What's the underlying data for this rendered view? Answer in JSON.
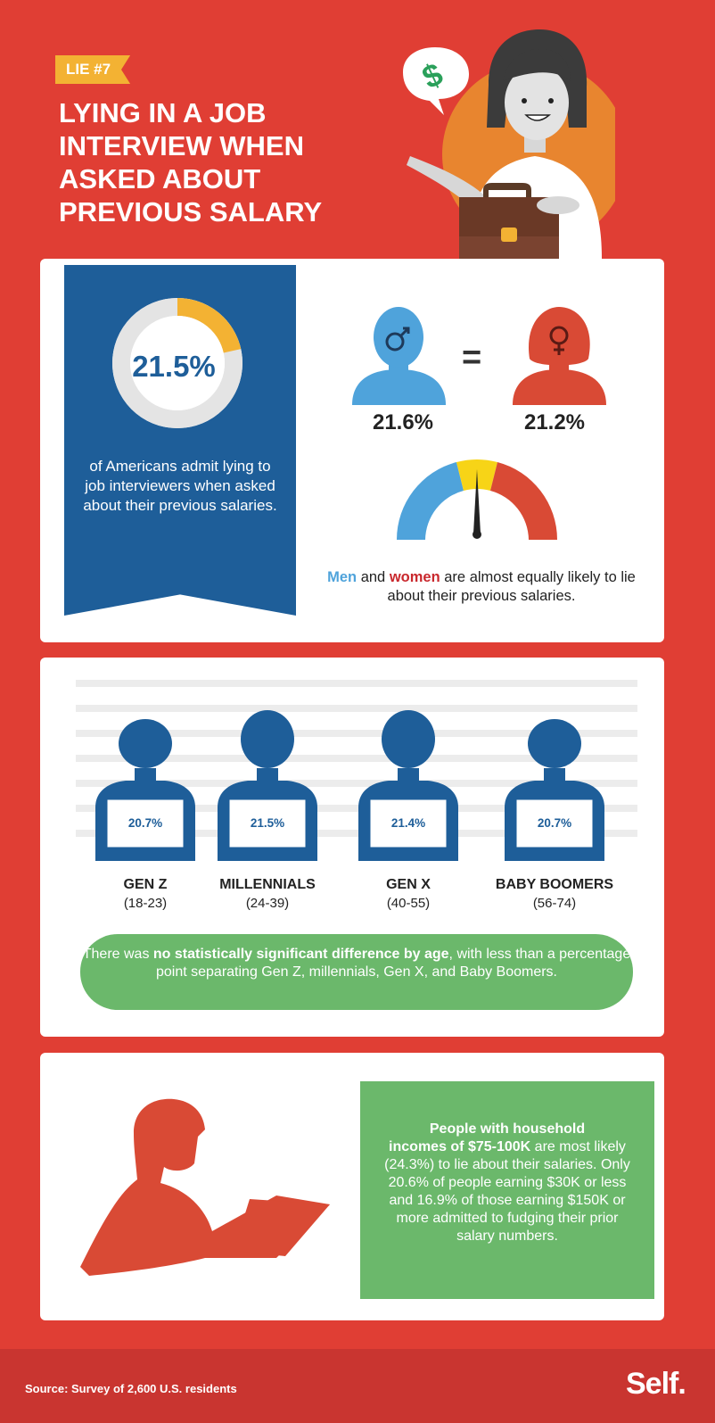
{
  "header": {
    "badge": "LIE #7",
    "title": "LYING IN A JOB INTERVIEW WHEN ASKED ABOUT PREVIOUS SALARY"
  },
  "overall": {
    "percent_label": "21.5%",
    "percent_value": 0.215,
    "description": "of Americans admit lying to job interviewers when asked about their previous salaries."
  },
  "gender": {
    "men_pct": "21.6%",
    "women_pct": "21.2%",
    "equals": "=",
    "note_men": "Men",
    "note_and": " and ",
    "note_women": "women",
    "note_rest": " are almost equally likely to lie about their previous salaries."
  },
  "generations": [
    {
      "pct": "20.7%",
      "label": "GEN Z",
      "range": "(18-23)"
    },
    {
      "pct": "21.5%",
      "label": "MILLENNIALS",
      "range": "(24-39)"
    },
    {
      "pct": "21.4%",
      "label": "GEN X",
      "range": "(40-55)"
    },
    {
      "pct": "20.7%",
      "label": "BABY BOOMERS",
      "range": "(56-74)"
    }
  ],
  "age_note": {
    "prefix": "There was ",
    "bold": "no statistically significant difference by age",
    "suffix": ", with less than a percentage point separating Gen Z, millennials, Gen X, and Baby Boomers."
  },
  "income_note": {
    "bold_1": "People with household",
    "bold_2": "incomes of $75-100K",
    "rest": " are most likely (24.3%) to lie about their salaries.  Only 20.6% of people earning $30K or less and 16.9% of those earning $150K or more admitted to fudging their prior salary numbers."
  },
  "footer": {
    "source": "Source: Survey of 2,600 U.S. residents",
    "logo": "Self."
  },
  "colors": {
    "background": "#e03e34",
    "blue": "#1e5e99",
    "light_blue": "#4fa3db",
    "orange": "#e8852f",
    "yellow": "#f3b233",
    "green": "#6bb86b",
    "red": "#d94a35"
  }
}
